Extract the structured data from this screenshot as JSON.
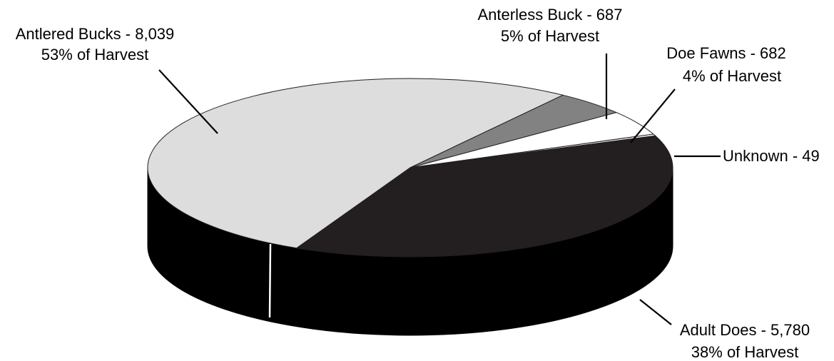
{
  "chart_data": {
    "type": "pie",
    "title": "",
    "slices": [
      {
        "name": "Antlered Bucks",
        "count_text": "8,039",
        "pct_text": "53%",
        "value": 8039,
        "color": "#dddddd"
      },
      {
        "name": "Anterless Buck",
        "count_text": "687",
        "pct_text": "5%",
        "value": 687,
        "color": "#828282"
      },
      {
        "name": "Doe Fawns",
        "count_text": "682",
        "pct_text": "4%",
        "value": 682,
        "color": "#ffffff"
      },
      {
        "name": "Unknown",
        "count_text": "49",
        "pct_text": "",
        "value": 49,
        "color": "#ffffff"
      },
      {
        "name": "Adult Does",
        "count_text": "5,780",
        "pct_text": "38%",
        "value": 5780,
        "color": "#231f20"
      }
    ],
    "labels": {
      "antlered": {
        "line1": "Antlered Bucks - 8,039",
        "line2": "53% of Harvest"
      },
      "anterless": {
        "line1": "Anterless Buck - 687",
        "line2": "5% of Harvest"
      },
      "doe_fawns": {
        "line1": "Doe Fawns - 682",
        "line2": "4% of Harvest"
      },
      "unknown": {
        "line1": "Unknown - 49"
      },
      "adult_does": {
        "line1": "Adult Does -  5,780",
        "line2": "38% of Harvest"
      }
    },
    "side_color": "#000000",
    "outline_color": "#231f20"
  }
}
